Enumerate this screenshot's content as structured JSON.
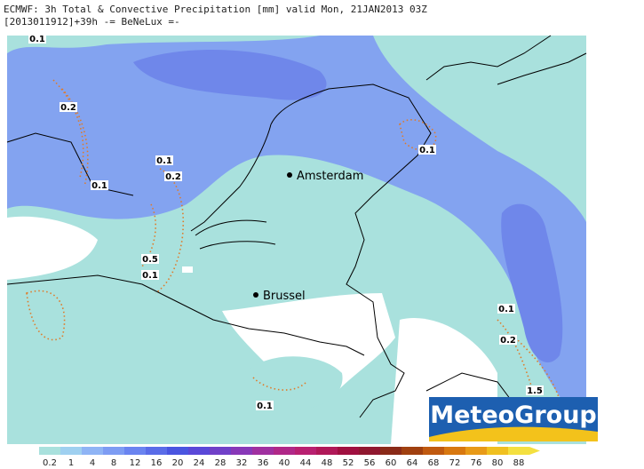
{
  "header": {
    "line1": "ECMWF: 3h Total & Convective Precipitation [mm] valid Mon, 21JAN2013 03Z",
    "line2": "[2013011912]+39h  -= BeNeLux =-"
  },
  "cities": [
    {
      "label": "Amsterdam"
    },
    {
      "label": "Brussel"
    }
  ],
  "contour_labels": [
    "0.1",
    "0.2",
    "0.1",
    "0.2",
    "0.1",
    "0.5",
    "0.1",
    "0.1",
    "0.1",
    "0.2",
    "1.5",
    "0.1"
  ],
  "logo": "MeteoGroup",
  "legend": {
    "labels": [
      "0.2",
      "1",
      "4",
      "8",
      "12",
      "16",
      "20",
      "24",
      "28",
      "32",
      "36",
      "40",
      "44",
      "48",
      "52",
      "56",
      "60",
      "64",
      "68",
      "72",
      "76",
      "80",
      "88"
    ]
  }
}
